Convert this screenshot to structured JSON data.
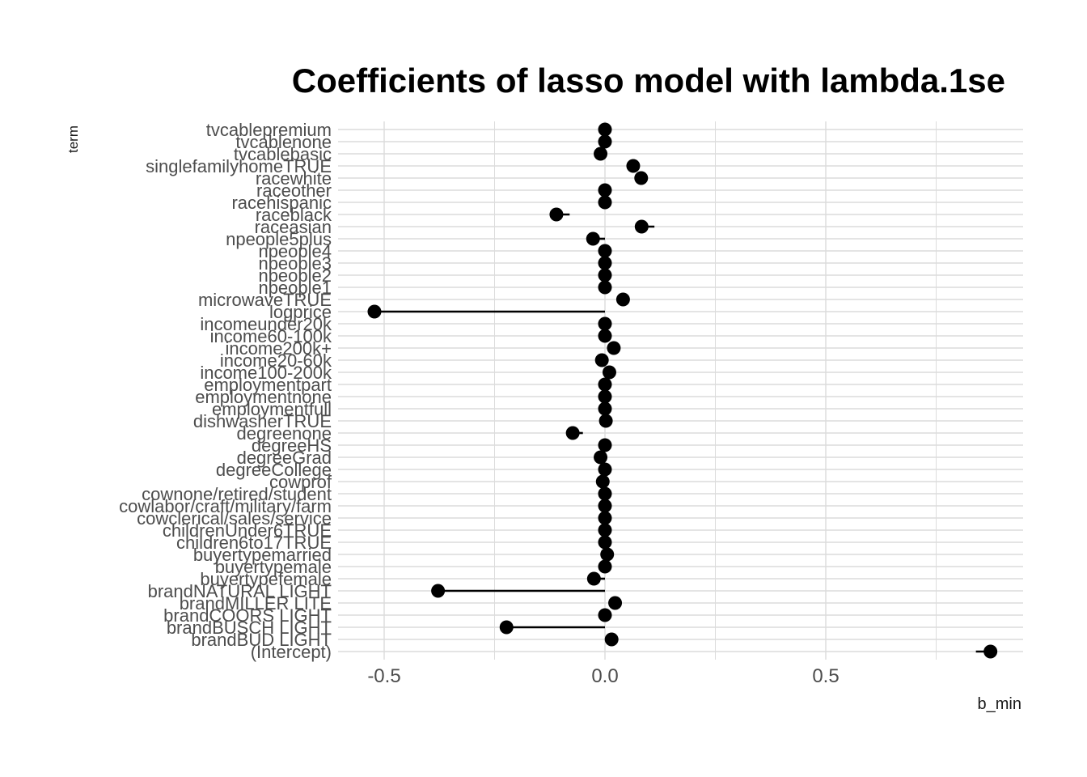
{
  "chart_data": {
    "type": "scatter",
    "title": "Coefficients of lasso model with lambda.1se",
    "xlabel": "b_min",
    "ylabel": "term",
    "xlim": [
      -0.6,
      0.94
    ],
    "x_ticks": [
      -0.5,
      0.0,
      0.5
    ],
    "x_tick_labels": [
      "-0.5",
      "0.0",
      "0.5"
    ],
    "grid": true,
    "legend": "none",
    "colors": {
      "point": "#000000",
      "segment": "#000000",
      "grid": "#dcdcdc"
    },
    "series": [
      {
        "terms": [
          "tvcablepremium",
          "tvcablenone",
          "tvcablebasic",
          "singlefamilyhomeTRUE",
          "racewhite",
          "raceother",
          "racehispanic",
          "raceblack",
          "raceasian",
          "npeople5plus",
          "npeople4",
          "npeople3",
          "npeople2",
          "npeople1",
          "microwaveTRUE",
          "logprice",
          "incomeunder20k",
          "income60-100k",
          "income200k+",
          "income20-60k",
          "income100-200k",
          "employmentpart",
          "employmentnone",
          "employmentfull",
          "dishwasherTRUE",
          "degreenone",
          "degreeHS",
          "degreeGrad",
          "degreeCollege",
          "cowprof",
          "cownone/retired/student",
          "cowlabor/craft/military/farm",
          "cowclerical/sales/service",
          "childrenUnder6TRUE",
          "children6to17TRUE",
          "buyertypemarried",
          "buyertypemale",
          "buyertypefemale",
          "brandNATURAL LIGHT",
          "brandMILLER LITE",
          "brandCOORS LIGHT",
          "brandBUSCH LIGHT",
          "brandBUD LIGHT",
          "(Intercept)"
        ],
        "b_min": [
          0.0,
          0.0,
          -0.01,
          0.064,
          0.082,
          0.0,
          0.0,
          -0.11,
          0.083,
          -0.027,
          0.0,
          0.0,
          0.0,
          0.0,
          0.041,
          -0.522,
          0.0,
          0.0,
          0.02,
          -0.007,
          0.01,
          0.0,
          0.0,
          0.0,
          0.002,
          -0.073,
          0.0,
          -0.01,
          0.0,
          -0.005,
          0.0,
          0.0,
          0.0,
          0.0,
          0.0,
          0.005,
          0.0,
          -0.025,
          -0.378,
          0.023,
          0.0,
          -0.223,
          0.015,
          0.873
        ],
        "b_max": [
          0.0,
          0.0,
          0.0,
          0.064,
          0.082,
          0.0,
          0.0,
          -0.08,
          0.112,
          0.0,
          0.0,
          0.0,
          0.0,
          0.0,
          0.041,
          0.0,
          0.0,
          0.0,
          0.02,
          0.0,
          0.01,
          0.0,
          0.0,
          0.0,
          0.002,
          -0.05,
          0.0,
          0.0,
          0.0,
          0.0,
          0.0,
          0.0,
          0.0,
          0.0,
          0.0,
          0.005,
          0.0,
          0.0,
          0.0,
          0.023,
          0.0,
          0.0,
          0.015,
          0.84
        ]
      }
    ]
  }
}
